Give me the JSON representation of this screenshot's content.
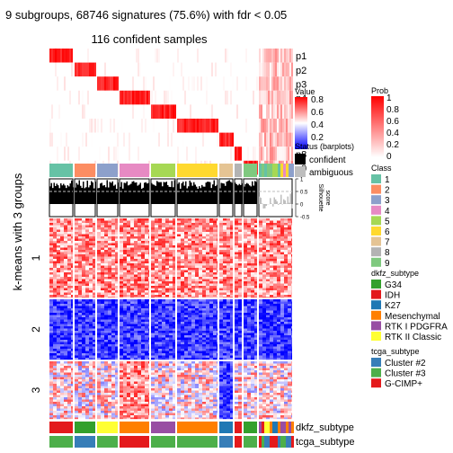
{
  "chart_data": {
    "type": "heatmap",
    "title": "9 subgroups, 68746 signatures (75.6%) with fdr < 0.05",
    "subtitle": "116 confident samples",
    "row_title": "k-means with 3 groups",
    "row_groups": [
      "1",
      "2",
      "3"
    ],
    "prob_rows": [
      "p1",
      "p2",
      "p3",
      "p4",
      "p5",
      "p6",
      "p7",
      "p8",
      "p9"
    ],
    "silhouette_label": "Silhouette\nscore",
    "silhouette_ticks": [
      "1",
      "0.5",
      "0",
      "-0.5"
    ],
    "silhouette_threshold": 0.5,
    "column_groups": [
      {
        "class": "1",
        "width": 26,
        "dkfz": "IDH",
        "tcga": "Cluster #3"
      },
      {
        "class": "2",
        "width": 23,
        "dkfz": "G34",
        "tcga": "Cluster #2"
      },
      {
        "class": "3",
        "width": 23,
        "dkfz": "RTK II Classic",
        "tcga": "Cluster #3"
      },
      {
        "class": "4",
        "width": 33,
        "dkfz": "Mesenchymal",
        "tcga": "G-CIMP+"
      },
      {
        "class": "5",
        "width": 27,
        "dkfz": "RTK I PDGFRA",
        "tcga": "Cluster #3"
      },
      {
        "class": "6",
        "width": 45,
        "dkfz": "Mesenchymal",
        "tcga": "Cluster #3"
      },
      {
        "class": "7",
        "width": 15,
        "dkfz": "K27",
        "tcga": "Cluster #2"
      },
      {
        "class": "8",
        "width": 8,
        "dkfz": "IDH",
        "tcga": "G-CIMP+"
      },
      {
        "class": "9",
        "width": 15,
        "dkfz": "G34",
        "tcga": "Cluster #3"
      },
      {
        "class": "ambiguous",
        "width": 37,
        "dkfz": "mixed",
        "tcga": "mixed"
      }
    ],
    "bottom_tracks": [
      "dkfz_subtype",
      "tcga_subtype"
    ],
    "legends": {
      "value": {
        "title": "Value",
        "ticks": [
          "0.8",
          "0.6",
          "0.4",
          "0.2"
        ]
      },
      "prob": {
        "title": "Prob",
        "ticks": [
          "1",
          "0.8",
          "0.6",
          "0.4",
          "0.2",
          "0"
        ]
      },
      "status": {
        "title": "Status (barplots)",
        "items": [
          {
            "label": "confident",
            "color": "#000000"
          },
          {
            "label": "ambiguous",
            "color": "#bebebe"
          }
        ]
      },
      "class": {
        "title": "Class",
        "items": [
          {
            "label": "1",
            "color": "#66C2A5"
          },
          {
            "label": "2",
            "color": "#FC8D62"
          },
          {
            "label": "3",
            "color": "#8DA0CB"
          },
          {
            "label": "4",
            "color": "#E78AC3"
          },
          {
            "label": "5",
            "color": "#A6D854"
          },
          {
            "label": "6",
            "color": "#FFD92F"
          },
          {
            "label": "7",
            "color": "#E5C494"
          },
          {
            "label": "8",
            "color": "#B3B3B3"
          },
          {
            "label": "9",
            "color": "#7FC97F"
          }
        ]
      },
      "dkfz_subtype": {
        "title": "dkfz_subtype",
        "items": [
          {
            "label": "G34",
            "color": "#33A02C"
          },
          {
            "label": "IDH",
            "color": "#E31A1C"
          },
          {
            "label": "K27",
            "color": "#1F78B4"
          },
          {
            "label": "Mesenchymal",
            "color": "#FF7F00"
          },
          {
            "label": "RTK I PDGFRA",
            "color": "#984EA3"
          },
          {
            "label": "RTK II Classic",
            "color": "#FFFF33"
          }
        ]
      },
      "tcga_subtype": {
        "title": "tcga_subtype",
        "items": [
          {
            "label": "Cluster #2",
            "color": "#377EB8"
          },
          {
            "label": "Cluster #3",
            "color": "#4DAF4A"
          },
          {
            "label": "G-CIMP+",
            "color": "#E41A1C"
          }
        ]
      }
    },
    "heatmap_pattern": {
      "group_1": {
        "1": "high",
        "2": "high",
        "3": "high",
        "4": "high",
        "5": "high",
        "6": "high",
        "7": "high",
        "8": "high",
        "9": "high",
        "ambiguous": "high"
      },
      "group_2": {
        "1": "low",
        "2": "low",
        "3": "low",
        "4": "low",
        "5": "low",
        "6": "low",
        "7": "low",
        "8": "low",
        "9": "low",
        "ambiguous": "low"
      },
      "group_3": {
        "1": "mid",
        "2": "mid",
        "3": "mid",
        "4": "high",
        "5": "mid",
        "6": "mid",
        "7": "low",
        "8": "mid",
        "9": "mid",
        "ambiguous": "mid"
      }
    }
  }
}
